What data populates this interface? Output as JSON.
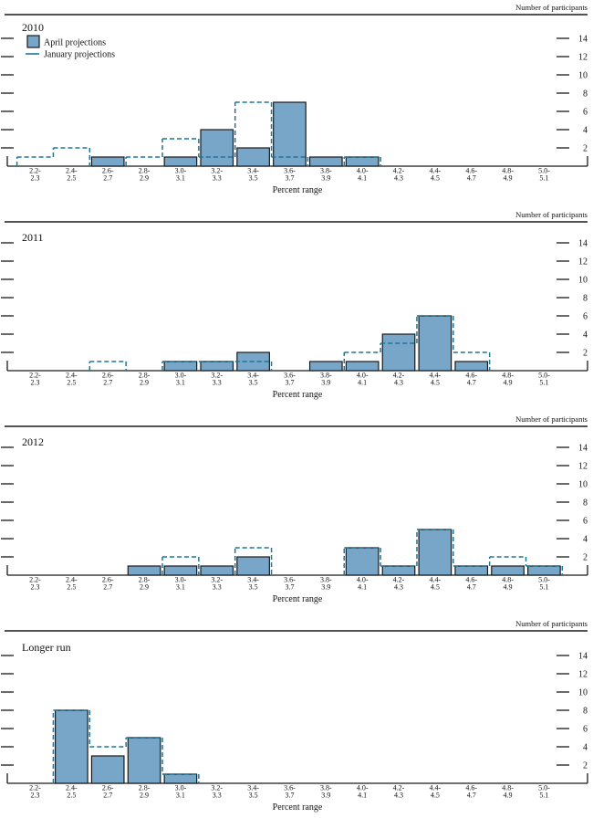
{
  "figure": {
    "y_axis_label": "Number of participants",
    "x_axis_label": "Percent range"
  },
  "colors": {
    "bar_fill": "#78a6c9",
    "bar_border": "#1a1a1a",
    "january_line": "#1f7599",
    "axis": "#1a1a1a",
    "text": "#111111"
  },
  "chart_data": [
    {
      "type": "bar",
      "title": "2010",
      "ylabel": "Number of participants",
      "xlabel": "Percent range",
      "ylim": [
        0,
        15
      ],
      "yticks": [
        2,
        4,
        6,
        8,
        10,
        12,
        14
      ],
      "grid": false,
      "legend": true,
      "legend_position": "top-left",
      "categories": [
        [
          "2.2-",
          "2.3"
        ],
        [
          "2.4-",
          "2.5"
        ],
        [
          "2.6-",
          "2.7"
        ],
        [
          "2.8-",
          "2.9"
        ],
        [
          "3.0-",
          "3.1"
        ],
        [
          "3.2-",
          "3.3"
        ],
        [
          "3.4-",
          "3.5"
        ],
        [
          "3.6-",
          "3.7"
        ],
        [
          "3.8-",
          "3.9"
        ],
        [
          "4.0-",
          "4.1"
        ],
        [
          "4.2-",
          "4.3"
        ],
        [
          "4.4-",
          "4.5"
        ],
        [
          "4.6-",
          "4.7"
        ],
        [
          "4.8-",
          "4.9"
        ],
        [
          "5.0-",
          "5.1"
        ]
      ],
      "series": [
        {
          "name": "April projections",
          "style": "solid-bar",
          "values": [
            0,
            0,
            1,
            0,
            1,
            4,
            2,
            7,
            1,
            1,
            0,
            0,
            0,
            0,
            0
          ]
        },
        {
          "name": "January projections",
          "style": "dashed-step",
          "values": [
            1,
            2,
            0,
            1,
            3,
            1,
            7,
            1,
            0,
            1,
            0,
            0,
            0,
            0,
            0
          ]
        }
      ]
    },
    {
      "type": "bar",
      "title": "2011",
      "ylabel": "Number of participants",
      "xlabel": "Percent range",
      "ylim": [
        0,
        15
      ],
      "yticks": [
        2,
        4,
        6,
        8,
        10,
        12,
        14
      ],
      "grid": false,
      "legend": false,
      "categories": [
        [
          "2.2-",
          "2.3"
        ],
        [
          "2.4-",
          "2.5"
        ],
        [
          "2.6-",
          "2.7"
        ],
        [
          "2.8-",
          "2.9"
        ],
        [
          "3.0-",
          "3.1"
        ],
        [
          "3.2-",
          "3.3"
        ],
        [
          "3.4-",
          "3.5"
        ],
        [
          "3.6-",
          "3.7"
        ],
        [
          "3.8-",
          "3.9"
        ],
        [
          "4.0-",
          "4.1"
        ],
        [
          "4.2-",
          "4.3"
        ],
        [
          "4.4-",
          "4.5"
        ],
        [
          "4.6-",
          "4.7"
        ],
        [
          "4.8-",
          "4.9"
        ],
        [
          "5.0-",
          "5.1"
        ]
      ],
      "series": [
        {
          "name": "April projections",
          "style": "solid-bar",
          "values": [
            0,
            0,
            0,
            0,
            1,
            1,
            2,
            0,
            1,
            1,
            4,
            6,
            1,
            0,
            0
          ]
        },
        {
          "name": "January projections",
          "style": "dashed-step",
          "values": [
            0,
            0,
            1,
            0,
            1,
            1,
            1,
            0,
            0,
            2,
            3,
            6,
            2,
            0,
            0
          ]
        }
      ]
    },
    {
      "type": "bar",
      "title": "2012",
      "ylabel": "Number of participants",
      "xlabel": "Percent range",
      "ylim": [
        0,
        15
      ],
      "yticks": [
        2,
        4,
        6,
        8,
        10,
        12,
        14
      ],
      "grid": false,
      "legend": false,
      "categories": [
        [
          "2.2-",
          "2.3"
        ],
        [
          "2.4-",
          "2.5"
        ],
        [
          "2.6-",
          "2.7"
        ],
        [
          "2.8-",
          "2.9"
        ],
        [
          "3.0-",
          "3.1"
        ],
        [
          "3.2-",
          "3.3"
        ],
        [
          "3.4-",
          "3.5"
        ],
        [
          "3.6-",
          "3.7"
        ],
        [
          "3.8-",
          "3.9"
        ],
        [
          "4.0-",
          "4.1"
        ],
        [
          "4.2-",
          "4.3"
        ],
        [
          "4.4-",
          "4.5"
        ],
        [
          "4.6-",
          "4.7"
        ],
        [
          "4.8-",
          "4.9"
        ],
        [
          "5.0-",
          "5.1"
        ]
      ],
      "series": [
        {
          "name": "April projections",
          "style": "solid-bar",
          "values": [
            0,
            0,
            0,
            1,
            1,
            1,
            2,
            0,
            0,
            3,
            1,
            5,
            1,
            1,
            1
          ]
        },
        {
          "name": "January projections",
          "style": "dashed-step",
          "values": [
            0,
            0,
            0,
            0,
            2,
            0,
            3,
            0,
            0,
            3,
            1,
            5,
            1,
            2,
            1
          ]
        }
      ]
    },
    {
      "type": "bar",
      "title": "Longer run",
      "ylabel": "Number of participants",
      "xlabel": "Percent range",
      "ylim": [
        0,
        15
      ],
      "yticks": [
        2,
        4,
        6,
        8,
        10,
        12,
        14
      ],
      "grid": false,
      "legend": false,
      "categories": [
        [
          "2.2-",
          "2.3"
        ],
        [
          "2.4-",
          "2.5"
        ],
        [
          "2.6-",
          "2.7"
        ],
        [
          "2.8-",
          "2.9"
        ],
        [
          "3.0-",
          "3.1"
        ],
        [
          "3.2-",
          "3.3"
        ],
        [
          "3.4-",
          "3.5"
        ],
        [
          "3.6-",
          "3.7"
        ],
        [
          "3.8-",
          "3.9"
        ],
        [
          "4.0-",
          "4.1"
        ],
        [
          "4.2-",
          "4.3"
        ],
        [
          "4.4-",
          "4.5"
        ],
        [
          "4.6-",
          "4.7"
        ],
        [
          "4.8-",
          "4.9"
        ],
        [
          "5.0-",
          "5.1"
        ]
      ],
      "series": [
        {
          "name": "April projections",
          "style": "solid-bar",
          "values": [
            0,
            8,
            3,
            5,
            1,
            0,
            0,
            0,
            0,
            0,
            0,
            0,
            0,
            0,
            0
          ]
        },
        {
          "name": "January projections",
          "style": "dashed-step",
          "values": [
            0,
            8,
            4,
            5,
            1,
            0,
            0,
            0,
            0,
            0,
            0,
            0,
            0,
            0,
            0
          ]
        }
      ]
    }
  ]
}
